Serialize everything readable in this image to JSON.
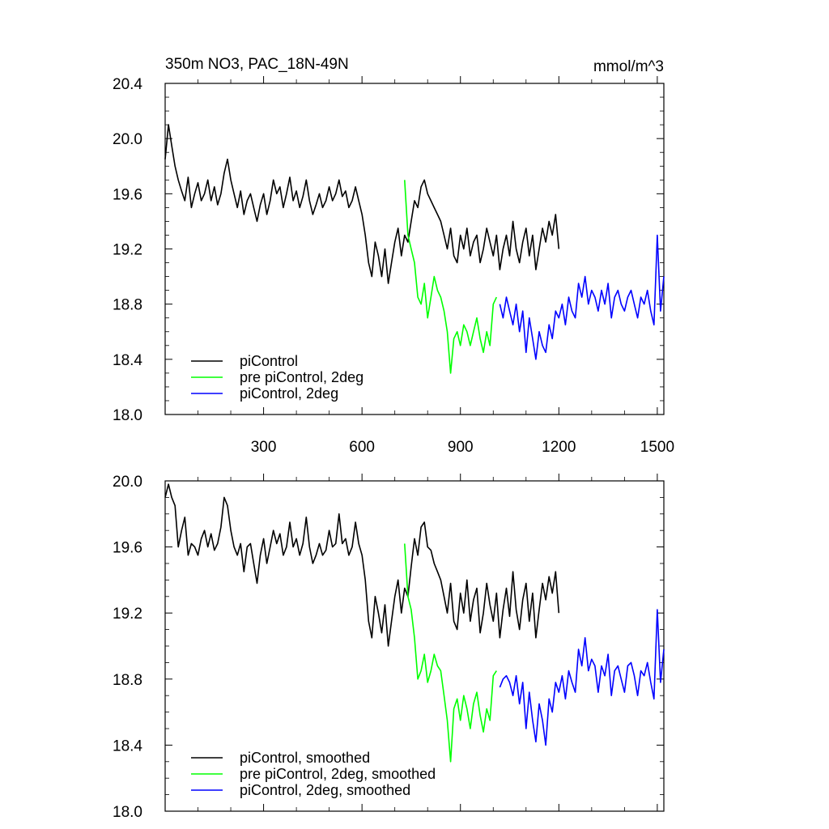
{
  "chart_data": [
    {
      "type": "line",
      "title": "350m NO3, PAC_18N-49N",
      "units": "mmol/m^3",
      "xlim": [
        0,
        1520
      ],
      "ylim": [
        18.0,
        20.4
      ],
      "x_ticks": [
        300,
        600,
        900,
        1200,
        1500
      ],
      "y_ticks": [
        18.0,
        18.4,
        18.8,
        19.2,
        19.6,
        20.0,
        20.4
      ],
      "y_tick_labels": [
        "18.0",
        "18.4",
        "18.8",
        "19.2",
        "19.6",
        "20.0",
        "20.4"
      ],
      "legend_position": "bottom-left",
      "series": [
        {
          "name": "piControl",
          "color": "#000000",
          "x": [
            0,
            10,
            20,
            30,
            40,
            50,
            60,
            70,
            80,
            90,
            100,
            110,
            120,
            130,
            140,
            150,
            160,
            170,
            180,
            190,
            200,
            210,
            220,
            230,
            240,
            250,
            260,
            270,
            280,
            290,
            300,
            310,
            320,
            330,
            340,
            350,
            360,
            370,
            380,
            390,
            400,
            410,
            420,
            430,
            440,
            450,
            460,
            470,
            480,
            490,
            500,
            510,
            520,
            530,
            540,
            550,
            560,
            570,
            580,
            590,
            600,
            610,
            620,
            630,
            640,
            650,
            660,
            670,
            680,
            690,
            700,
            710,
            720,
            730,
            740,
            750,
            760,
            770,
            780,
            790,
            800,
            810,
            820,
            830,
            840,
            850,
            860,
            870,
            880,
            890,
            900,
            910,
            920,
            930,
            940,
            950,
            960,
            970,
            980,
            990,
            1000,
            1010,
            1020,
            1030,
            1040,
            1050,
            1060,
            1070,
            1080,
            1090,
            1100,
            1110,
            1120,
            1130,
            1140,
            1150,
            1160,
            1170,
            1180,
            1190,
            1200
          ],
          "values": [
            19.85,
            20.1,
            19.95,
            19.8,
            19.7,
            19.62,
            19.55,
            19.72,
            19.5,
            19.6,
            19.68,
            19.55,
            19.6,
            19.7,
            19.55,
            19.65,
            19.52,
            19.6,
            19.75,
            19.85,
            19.7,
            19.6,
            19.5,
            19.62,
            19.45,
            19.55,
            19.6,
            19.5,
            19.4,
            19.52,
            19.6,
            19.45,
            19.55,
            19.7,
            19.6,
            19.65,
            19.5,
            19.6,
            19.72,
            19.55,
            19.62,
            19.5,
            19.58,
            19.7,
            19.55,
            19.45,
            19.52,
            19.6,
            19.5,
            19.55,
            19.65,
            19.55,
            19.6,
            19.7,
            19.58,
            19.62,
            19.5,
            19.55,
            19.65,
            19.55,
            19.45,
            19.3,
            19.1,
            19.0,
            19.25,
            19.15,
            19.0,
            19.2,
            18.95,
            19.1,
            19.25,
            19.35,
            19.15,
            19.3,
            19.25,
            19.4,
            19.55,
            19.5,
            19.65,
            19.7,
            19.6,
            19.55,
            19.5,
            19.45,
            19.4,
            19.3,
            19.2,
            19.35,
            19.15,
            19.1,
            19.3,
            19.2,
            19.35,
            19.15,
            19.25,
            19.3,
            19.1,
            19.2,
            19.35,
            19.25,
            19.15,
            19.3,
            19.05,
            19.2,
            19.3,
            19.15,
            19.4,
            19.2,
            19.1,
            19.25,
            19.35,
            19.15,
            19.3,
            19.05,
            19.2,
            19.35,
            19.25,
            19.4,
            19.3,
            19.45,
            19.2
          ]
        },
        {
          "name": "pre piControl, 2deg",
          "color": "#00ff00",
          "x": [
            730,
            740,
            750,
            760,
            770,
            780,
            790,
            800,
            810,
            820,
            830,
            840,
            850,
            860,
            870,
            880,
            890,
            900,
            910,
            920,
            930,
            940,
            950,
            960,
            970,
            980,
            990,
            1000,
            1010
          ],
          "values": [
            19.7,
            19.3,
            19.2,
            19.1,
            18.85,
            18.8,
            18.95,
            18.7,
            18.85,
            19.0,
            18.9,
            18.85,
            18.75,
            18.6,
            18.3,
            18.55,
            18.6,
            18.5,
            18.65,
            18.6,
            18.5,
            18.6,
            18.7,
            18.55,
            18.45,
            18.6,
            18.5,
            18.8,
            18.85
          ]
        },
        {
          "name": "piControl, 2deg",
          "color": "#0000ff",
          "x": [
            1020,
            1030,
            1040,
            1050,
            1060,
            1070,
            1080,
            1090,
            1100,
            1110,
            1120,
            1130,
            1140,
            1150,
            1160,
            1170,
            1180,
            1190,
            1200,
            1210,
            1220,
            1230,
            1240,
            1250,
            1260,
            1270,
            1280,
            1290,
            1300,
            1310,
            1320,
            1330,
            1340,
            1350,
            1360,
            1370,
            1380,
            1390,
            1400,
            1410,
            1420,
            1430,
            1440,
            1450,
            1460,
            1470,
            1480,
            1490,
            1500,
            1510,
            1520
          ],
          "values": [
            18.8,
            18.7,
            18.85,
            18.75,
            18.65,
            18.8,
            18.6,
            18.75,
            18.45,
            18.7,
            18.55,
            18.4,
            18.6,
            18.5,
            18.45,
            18.65,
            18.55,
            18.75,
            18.7,
            18.8,
            18.65,
            18.85,
            18.75,
            18.7,
            18.95,
            18.85,
            19.0,
            18.8,
            18.9,
            18.85,
            18.75,
            18.9,
            18.8,
            18.95,
            18.7,
            18.85,
            18.9,
            18.8,
            18.75,
            18.85,
            18.9,
            18.8,
            18.7,
            18.85,
            18.8,
            18.9,
            18.75,
            18.65,
            19.3,
            18.75,
            19.0
          ]
        }
      ]
    },
    {
      "type": "line",
      "xlim": [
        0,
        1520
      ],
      "ylim": [
        18.0,
        20.0
      ],
      "x_ticks": [
        300,
        600,
        900,
        1200,
        1500
      ],
      "y_ticks": [
        18.0,
        18.4,
        18.8,
        19.2,
        19.6,
        20.0
      ],
      "y_tick_labels": [
        "18.0",
        "18.4",
        "18.8",
        "19.2",
        "19.6",
        "20.0"
      ],
      "legend_position": "bottom-left",
      "series": [
        {
          "name": "piControl, smoothed",
          "color": "#000000",
          "x": [
            0,
            10,
            20,
            30,
            40,
            50,
            60,
            70,
            80,
            90,
            100,
            110,
            120,
            130,
            140,
            150,
            160,
            170,
            180,
            190,
            200,
            210,
            220,
            230,
            240,
            250,
            260,
            270,
            280,
            290,
            300,
            310,
            320,
            330,
            340,
            350,
            360,
            370,
            380,
            390,
            400,
            410,
            420,
            430,
            440,
            450,
            460,
            470,
            480,
            490,
            500,
            510,
            520,
            530,
            540,
            550,
            560,
            570,
            580,
            590,
            600,
            610,
            620,
            630,
            640,
            650,
            660,
            670,
            680,
            690,
            700,
            710,
            720,
            730,
            740,
            750,
            760,
            770,
            780,
            790,
            800,
            810,
            820,
            830,
            840,
            850,
            860,
            870,
            880,
            890,
            900,
            910,
            920,
            930,
            940,
            950,
            960,
            970,
            980,
            990,
            1000,
            1010,
            1020,
            1030,
            1040,
            1050,
            1060,
            1070,
            1080,
            1090,
            1100,
            1110,
            1120,
            1130,
            1140,
            1150,
            1160,
            1170,
            1180,
            1190,
            1200
          ],
          "values": [
            19.9,
            19.98,
            19.9,
            19.85,
            19.6,
            19.7,
            19.78,
            19.55,
            19.62,
            19.6,
            19.55,
            19.65,
            19.7,
            19.6,
            19.68,
            19.58,
            19.62,
            19.72,
            19.9,
            19.85,
            19.7,
            19.6,
            19.55,
            19.62,
            19.45,
            19.6,
            19.62,
            19.5,
            19.38,
            19.55,
            19.65,
            19.5,
            19.6,
            19.7,
            19.62,
            19.68,
            19.55,
            19.6,
            19.75,
            19.6,
            19.65,
            19.55,
            19.62,
            19.78,
            19.6,
            19.5,
            19.55,
            19.62,
            19.55,
            19.58,
            19.7,
            19.6,
            19.62,
            19.8,
            19.62,
            19.65,
            19.55,
            19.6,
            19.75,
            19.62,
            19.55,
            19.4,
            19.15,
            19.05,
            19.3,
            19.2,
            19.08,
            19.25,
            19.0,
            19.15,
            19.3,
            19.4,
            19.2,
            19.35,
            19.3,
            19.48,
            19.65,
            19.55,
            19.72,
            19.75,
            19.6,
            19.58,
            19.5,
            19.45,
            19.4,
            19.3,
            19.2,
            19.38,
            19.15,
            19.1,
            19.32,
            19.2,
            19.4,
            19.15,
            19.28,
            19.35,
            19.08,
            19.2,
            19.38,
            19.25,
            19.15,
            19.32,
            19.05,
            19.22,
            19.35,
            19.18,
            19.45,
            19.22,
            19.1,
            19.28,
            19.38,
            19.15,
            19.32,
            19.05,
            19.22,
            19.38,
            19.28,
            19.42,
            19.32,
            19.45,
            19.2
          ]
        },
        {
          "name": "pre piControl, 2deg, smoothed",
          "color": "#00ff00",
          "x": [
            730,
            740,
            750,
            760,
            770,
            780,
            790,
            800,
            810,
            820,
            830,
            840,
            850,
            860,
            870,
            880,
            890,
            900,
            910,
            920,
            930,
            940,
            950,
            960,
            970,
            980,
            990,
            1000,
            1010
          ],
          "values": [
            19.62,
            19.3,
            19.22,
            19.05,
            18.8,
            18.85,
            18.95,
            18.78,
            18.85,
            18.95,
            18.88,
            18.85,
            18.7,
            18.55,
            18.3,
            18.62,
            18.68,
            18.55,
            18.7,
            18.62,
            18.5,
            18.65,
            18.72,
            18.58,
            18.48,
            18.62,
            18.55,
            18.82,
            18.85
          ]
        },
        {
          "name": "piControl, 2deg, smoothed",
          "color": "#0000ff",
          "x": [
            1020,
            1030,
            1040,
            1050,
            1060,
            1070,
            1080,
            1090,
            1100,
            1110,
            1120,
            1130,
            1140,
            1150,
            1160,
            1170,
            1180,
            1190,
            1200,
            1210,
            1220,
            1230,
            1240,
            1250,
            1260,
            1270,
            1280,
            1290,
            1300,
            1310,
            1320,
            1330,
            1340,
            1350,
            1360,
            1370,
            1380,
            1390,
            1400,
            1410,
            1420,
            1430,
            1440,
            1450,
            1460,
            1470,
            1480,
            1490,
            1500,
            1510,
            1520
          ],
          "values": [
            18.75,
            18.8,
            18.82,
            18.78,
            18.7,
            18.82,
            18.65,
            18.78,
            18.5,
            18.72,
            18.55,
            18.42,
            18.65,
            18.55,
            18.4,
            18.68,
            18.6,
            18.78,
            18.72,
            18.82,
            18.68,
            18.85,
            18.78,
            18.72,
            18.98,
            18.88,
            19.05,
            18.85,
            18.92,
            18.88,
            18.72,
            18.88,
            18.82,
            18.95,
            18.7,
            18.85,
            18.88,
            18.8,
            18.72,
            18.88,
            18.9,
            18.82,
            18.7,
            18.85,
            18.82,
            18.9,
            18.78,
            18.68,
            19.22,
            18.78,
            18.98
          ]
        }
      ]
    }
  ]
}
